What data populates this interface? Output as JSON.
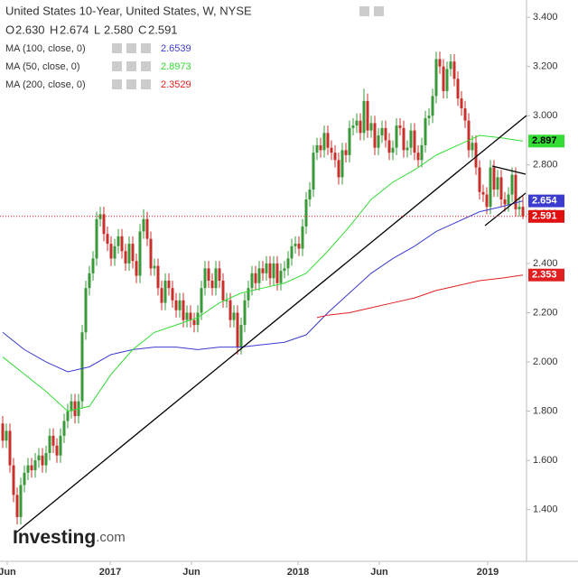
{
  "chart_data": {
    "type": "candlestick",
    "title": "United States 10-Year, United States, W, NYSE",
    "ohlc_labels": [
      "O",
      "H",
      "L",
      "C"
    ],
    "header_values": [
      "2.630",
      "2.674",
      "2.580",
      "2.591"
    ],
    "logo": "Investing",
    "logo_suffix": ".com",
    "up_color": "#3a9a3a",
    "down_color": "#c8302c",
    "candles": [
      [
        1.75,
        1.78,
        1.65,
        1.68
      ],
      [
        1.68,
        1.75,
        1.65,
        1.72
      ],
      [
        1.72,
        1.75,
        1.55,
        1.58
      ],
      [
        1.58,
        1.61,
        1.43,
        1.46
      ],
      [
        1.46,
        1.49,
        1.34,
        1.37
      ],
      [
        1.37,
        1.53,
        1.34,
        1.5
      ],
      [
        1.5,
        1.58,
        1.47,
        1.55
      ],
      [
        1.55,
        1.61,
        1.52,
        1.58
      ],
      [
        1.58,
        1.61,
        1.53,
        1.56
      ],
      [
        1.56,
        1.63,
        1.53,
        1.6
      ],
      [
        1.6,
        1.65,
        1.57,
        1.62
      ],
      [
        1.62,
        1.65,
        1.55,
        1.58
      ],
      [
        1.58,
        1.66,
        1.55,
        1.63
      ],
      [
        1.63,
        1.73,
        1.6,
        1.7
      ],
      [
        1.7,
        1.73,
        1.63,
        1.66
      ],
      [
        1.66,
        1.69,
        1.59,
        1.62
      ],
      [
        1.62,
        1.73,
        1.59,
        1.7
      ],
      [
        1.7,
        1.79,
        1.67,
        1.76
      ],
      [
        1.76,
        1.83,
        1.73,
        1.8
      ],
      [
        1.8,
        1.87,
        1.77,
        1.84
      ],
      [
        1.84,
        1.87,
        1.75,
        1.78
      ],
      [
        1.78,
        1.87,
        1.75,
        1.84
      ],
      [
        1.84,
        2.15,
        1.81,
        2.12
      ],
      [
        2.12,
        2.33,
        2.09,
        2.3
      ],
      [
        2.3,
        2.39,
        2.27,
        2.36
      ],
      [
        2.36,
        2.45,
        2.33,
        2.42
      ],
      [
        2.42,
        2.61,
        2.39,
        2.58
      ],
      [
        2.58,
        2.63,
        2.55,
        2.6
      ],
      [
        2.6,
        2.63,
        2.49,
        2.52
      ],
      [
        2.52,
        2.55,
        2.45,
        2.48
      ],
      [
        2.48,
        2.51,
        2.39,
        2.42
      ],
      [
        2.42,
        2.5,
        2.39,
        2.47
      ],
      [
        2.47,
        2.54,
        2.44,
        2.51
      ],
      [
        2.51,
        2.54,
        2.42,
        2.45
      ],
      [
        2.45,
        2.48,
        2.37,
        2.4
      ],
      [
        2.4,
        2.51,
        2.37,
        2.48
      ],
      [
        2.48,
        2.51,
        2.38,
        2.41
      ],
      [
        2.41,
        2.44,
        2.32,
        2.35
      ],
      [
        2.35,
        2.56,
        2.32,
        2.53
      ],
      [
        2.53,
        2.62,
        2.5,
        2.58
      ],
      [
        2.58,
        2.61,
        2.47,
        2.5
      ],
      [
        2.5,
        2.53,
        2.35,
        2.38
      ],
      [
        2.38,
        2.42,
        2.35,
        2.39
      ],
      [
        2.39,
        2.42,
        2.27,
        2.3
      ],
      [
        2.3,
        2.33,
        2.21,
        2.24
      ],
      [
        2.24,
        2.36,
        2.21,
        2.33
      ],
      [
        2.33,
        2.36,
        2.27,
        2.3
      ],
      [
        2.3,
        2.33,
        2.22,
        2.25
      ],
      [
        2.25,
        2.28,
        2.18,
        2.21
      ],
      [
        2.21,
        2.28,
        2.18,
        2.25
      ],
      [
        2.25,
        2.28,
        2.14,
        2.17
      ],
      [
        2.17,
        2.23,
        2.14,
        2.2
      ],
      [
        2.2,
        2.23,
        2.14,
        2.17
      ],
      [
        2.17,
        2.2,
        2.12,
        2.15
      ],
      [
        2.15,
        2.23,
        2.12,
        2.2
      ],
      [
        2.2,
        2.33,
        2.17,
        2.3
      ],
      [
        2.3,
        2.41,
        2.27,
        2.38
      ],
      [
        2.38,
        2.41,
        2.3,
        2.33
      ],
      [
        2.33,
        2.36,
        2.27,
        2.3
      ],
      [
        2.3,
        2.41,
        2.27,
        2.38
      ],
      [
        2.38,
        2.41,
        2.3,
        2.33
      ],
      [
        2.33,
        2.36,
        2.22,
        2.25
      ],
      [
        2.25,
        2.28,
        2.22,
        2.25
      ],
      [
        2.25,
        2.28,
        2.14,
        2.17
      ],
      [
        2.17,
        2.23,
        2.14,
        2.2
      ],
      [
        2.2,
        2.23,
        2.03,
        2.06
      ],
      [
        2.06,
        2.18,
        2.03,
        2.15
      ],
      [
        2.15,
        2.28,
        2.12,
        2.25
      ],
      [
        2.25,
        2.33,
        2.22,
        2.3
      ],
      [
        2.3,
        2.39,
        2.27,
        2.36
      ],
      [
        2.36,
        2.39,
        2.29,
        2.32
      ],
      [
        2.32,
        2.41,
        2.29,
        2.38
      ],
      [
        2.38,
        2.41,
        2.33,
        2.36
      ],
      [
        2.36,
        2.43,
        2.33,
        2.4
      ],
      [
        2.4,
        2.43,
        2.31,
        2.34
      ],
      [
        2.34,
        2.43,
        2.31,
        2.4
      ],
      [
        2.4,
        2.43,
        2.29,
        2.32
      ],
      [
        2.32,
        2.4,
        2.29,
        2.37
      ],
      [
        2.37,
        2.41,
        2.34,
        2.38
      ],
      [
        2.38,
        2.45,
        2.35,
        2.42
      ],
      [
        2.42,
        2.5,
        2.39,
        2.47
      ],
      [
        2.47,
        2.51,
        2.44,
        2.48
      ],
      [
        2.48,
        2.51,
        2.43,
        2.46
      ],
      [
        2.46,
        2.58,
        2.43,
        2.55
      ],
      [
        2.55,
        2.69,
        2.52,
        2.66
      ],
      [
        2.66,
        2.73,
        2.63,
        2.7
      ],
      [
        2.7,
        2.88,
        2.67,
        2.85
      ],
      [
        2.85,
        2.91,
        2.82,
        2.88
      ],
      [
        2.88,
        2.91,
        2.83,
        2.86
      ],
      [
        2.86,
        2.96,
        2.83,
        2.93
      ],
      [
        2.93,
        2.96,
        2.84,
        2.87
      ],
      [
        2.87,
        2.9,
        2.82,
        2.85
      ],
      [
        2.85,
        2.88,
        2.79,
        2.82
      ],
      [
        2.82,
        2.85,
        2.72,
        2.75
      ],
      [
        2.75,
        2.89,
        2.72,
        2.86
      ],
      [
        2.86,
        2.89,
        2.81,
        2.84
      ],
      [
        2.84,
        2.98,
        2.81,
        2.95
      ],
      [
        2.95,
        2.99,
        2.92,
        2.96
      ],
      [
        2.96,
        3.01,
        2.93,
        2.98
      ],
      [
        2.98,
        3.01,
        2.9,
        2.93
      ],
      [
        2.93,
        3.11,
        2.9,
        3.06
      ],
      [
        3.06,
        3.09,
        2.91,
        2.94
      ],
      [
        2.94,
        3.0,
        2.91,
        2.97
      ],
      [
        2.97,
        3.0,
        2.84,
        2.87
      ],
      [
        2.87,
        2.95,
        2.84,
        2.92
      ],
      [
        2.92,
        2.98,
        2.89,
        2.95
      ],
      [
        2.95,
        2.98,
        2.87,
        2.9
      ],
      [
        2.9,
        2.93,
        2.82,
        2.85
      ],
      [
        2.85,
        2.9,
        2.82,
        2.87
      ],
      [
        2.87,
        2.99,
        2.84,
        2.96
      ],
      [
        2.96,
        2.99,
        2.92,
        2.95
      ],
      [
        2.95,
        2.98,
        2.83,
        2.86
      ],
      [
        2.86,
        2.9,
        2.83,
        2.87
      ],
      [
        2.87,
        2.97,
        2.84,
        2.94
      ],
      [
        2.94,
        2.97,
        2.82,
        2.85
      ],
      [
        2.85,
        2.88,
        2.79,
        2.82
      ],
      [
        2.82,
        2.91,
        2.79,
        2.88
      ],
      [
        2.88,
        3.02,
        2.85,
        2.99
      ],
      [
        2.99,
        3.03,
        2.96,
        3.0
      ],
      [
        3.0,
        3.11,
        2.97,
        3.08
      ],
      [
        3.08,
        3.26,
        3.05,
        3.23
      ],
      [
        3.23,
        3.26,
        3.17,
        3.2
      ],
      [
        3.2,
        3.23,
        3.07,
        3.1
      ],
      [
        3.1,
        3.22,
        3.07,
        3.19
      ],
      [
        3.19,
        3.25,
        3.16,
        3.22
      ],
      [
        3.22,
        3.25,
        3.12,
        3.15
      ],
      [
        3.15,
        3.18,
        3.04,
        3.07
      ],
      [
        3.07,
        3.1,
        3.0,
        3.03
      ],
      [
        3.03,
        3.06,
        2.95,
        2.98
      ],
      [
        2.98,
        3.01,
        2.83,
        2.86
      ],
      [
        2.86,
        2.92,
        2.83,
        2.89
      ],
      [
        2.89,
        2.92,
        2.76,
        2.79
      ],
      [
        2.79,
        2.82,
        2.66,
        2.69
      ],
      [
        2.69,
        2.72,
        2.65,
        2.68
      ],
      [
        2.68,
        2.71,
        2.6,
        2.63
      ],
      [
        2.63,
        2.82,
        2.6,
        2.79
      ],
      [
        2.79,
        2.82,
        2.67,
        2.7
      ],
      [
        2.7,
        2.78,
        2.67,
        2.75
      ],
      [
        2.75,
        2.78,
        2.63,
        2.66
      ],
      [
        2.66,
        2.69,
        2.61,
        2.64
      ],
      [
        2.64,
        2.71,
        2.61,
        2.68
      ],
      [
        2.68,
        2.79,
        2.65,
        2.76
      ],
      [
        2.76,
        2.79,
        2.59,
        2.62
      ],
      [
        2.62,
        2.67,
        2.59,
        2.63
      ],
      [
        2.63,
        2.674,
        2.58,
        2.591
      ]
    ],
    "last_label": "2.591",
    "last_color": "#e01010",
    "series": [
      {
        "name": "MA (100, close, 0)",
        "color": "#3b3bd0",
        "value_label": "2.6539",
        "tag_label": "2.654",
        "x": [
          0,
          6,
          12,
          18,
          24,
          30,
          36,
          42,
          48,
          54,
          60,
          66,
          72,
          78,
          84,
          90,
          96,
          102,
          108,
          114,
          120,
          126,
          132,
          138,
          144
        ],
        "values": [
          2.12,
          2.05,
          2.0,
          1.96,
          1.98,
          2.03,
          2.05,
          2.06,
          2.06,
          2.05,
          2.06,
          2.06,
          2.07,
          2.08,
          2.11,
          2.2,
          2.28,
          2.36,
          2.42,
          2.47,
          2.53,
          2.57,
          2.61,
          2.63,
          2.654
        ]
      },
      {
        "name": "MA (50, close, 0)",
        "color": "#33dd33",
        "value_label": "2.8973",
        "tag_label": "2.897",
        "x": [
          0,
          6,
          12,
          18,
          24,
          30,
          36,
          42,
          48,
          54,
          60,
          66,
          72,
          78,
          84,
          90,
          96,
          102,
          108,
          114,
          120,
          126,
          132,
          138,
          144
        ],
        "values": [
          2.02,
          1.95,
          1.88,
          1.8,
          1.82,
          1.95,
          2.05,
          2.12,
          2.15,
          2.18,
          2.24,
          2.28,
          2.3,
          2.32,
          2.36,
          2.45,
          2.55,
          2.66,
          2.73,
          2.78,
          2.84,
          2.88,
          2.92,
          2.91,
          2.897
        ]
      },
      {
        "name": "MA (200, close, 0)",
        "color": "#e02020",
        "value_label": "2.3529",
        "tag_label": "2.353",
        "x": [
          87,
          90,
          96,
          102,
          108,
          114,
          120,
          126,
          132,
          138,
          144
        ],
        "values": [
          2.18,
          2.19,
          2.2,
          2.22,
          2.24,
          2.26,
          2.29,
          2.31,
          2.33,
          2.34,
          2.353
        ]
      }
    ],
    "ylim": [
      1.19,
      3.47
    ],
    "yticks": [
      {
        "value": 1.4,
        "label": "1.400"
      },
      {
        "value": 1.6,
        "label": "1.600"
      },
      {
        "value": 1.8,
        "label": "1.800"
      },
      {
        "value": 2.0,
        "label": "2.000"
      },
      {
        "value": 2.2,
        "label": "2.200"
      },
      {
        "value": 2.4,
        "label": "2.400"
      },
      {
        "value": 2.6,
        "label": "2.600"
      },
      {
        "value": 2.8,
        "label": "2.800"
      },
      {
        "value": 3.0,
        "label": "3.000"
      },
      {
        "value": 3.2,
        "label": "3.200"
      },
      {
        "value": 3.4,
        "label": "3.400"
      }
    ],
    "xticks": [
      {
        "value": 1.25,
        "label": "Jun"
      },
      {
        "value": 29.75,
        "label": "2017"
      },
      {
        "value": 52.25,
        "label": "Jun"
      },
      {
        "value": 81.75,
        "label": "2018"
      },
      {
        "value": 104.25,
        "label": "Jun"
      },
      {
        "value": 134.25,
        "label": "2019"
      }
    ]
  }
}
